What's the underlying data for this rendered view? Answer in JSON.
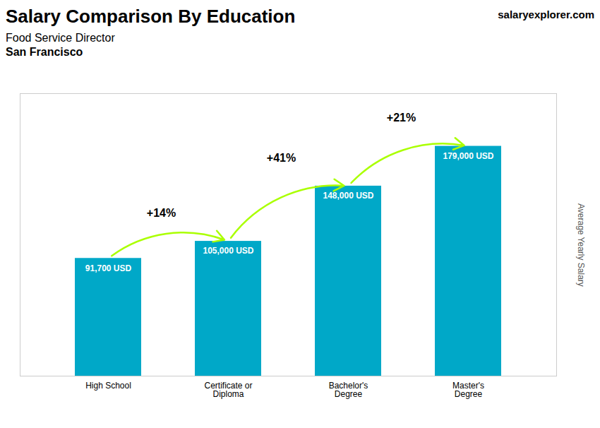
{
  "chart_data": {
    "type": "bar",
    "title": "Salary Comparison By Education",
    "subtitle": [
      "Food Service Director",
      "San Francisco"
    ],
    "ylabel": "Average Yearly Salary",
    "categories": [
      "High School",
      "Certificate or\nDiploma",
      "Bachelor's\nDegree",
      "Master's\nDegree"
    ],
    "values": [
      91700,
      105000,
      148000,
      179000
    ],
    "value_labels": [
      "91,700 USD",
      "105,000 USD",
      "148,000 USD",
      "179,000 USD"
    ],
    "data_labels": true,
    "color": "#00a8c8",
    "ylim": [
      0,
      220000
    ],
    "tick_labels": "x",
    "grid": false,
    "annotations": [
      {
        "text": "+14%",
        "from": "High School",
        "to": "Certificate or\nDiploma",
        "color": "#aaff00"
      },
      {
        "text": "+41%",
        "from": "Certificate or\nDiploma",
        "to": "Bachelor's\nDegree",
        "color": "#aaff00"
      },
      {
        "text": "+21%",
        "from": "Bachelor's\nDegree",
        "to": "Master's\nDegree",
        "color": "#aaff00"
      },
      {
        "text": "salaryexplorer.com"
      }
    ]
  }
}
